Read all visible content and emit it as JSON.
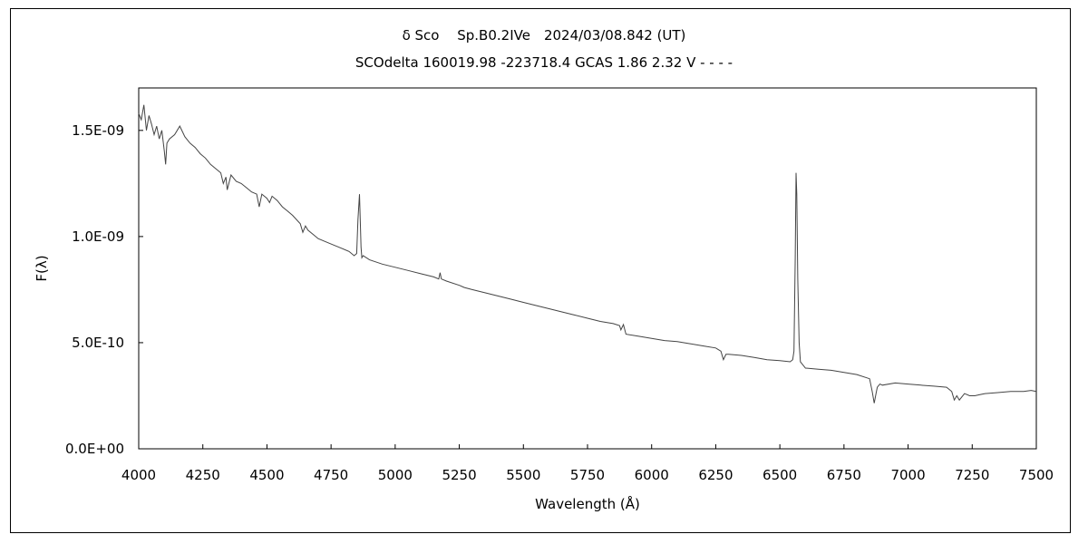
{
  "chart_data": {
    "type": "line",
    "title": "δ Sco　 Sp.B0.2IVe　2024/03/08.842 (UT)",
    "subtitle": "SCOdelta 160019.98 -223718.4 GCAS 1.86 2.32 V - - - -",
    "xlabel": "Wavelength (Å)",
    "ylabel": "F(λ)",
    "xlim": [
      4000,
      7500
    ],
    "ylim": [
      0,
      1.7e-09
    ],
    "xticks": [
      4000,
      4250,
      4500,
      4750,
      5000,
      5250,
      5500,
      5750,
      6000,
      6250,
      6500,
      6750,
      7000,
      7250,
      7500
    ],
    "xtick_labels": [
      "4000",
      "4250",
      "4500",
      "4750",
      "5000",
      "5250",
      "5500",
      "5750",
      "6000",
      "6250",
      "6500",
      "6750",
      "7000",
      "7250",
      "7500"
    ],
    "yticks": [
      0,
      5e-10,
      1e-09,
      1.5e-09
    ],
    "ytick_labels": [
      "0.0E+00",
      "5.0E-10",
      "1.0E-09",
      "1.5E-09"
    ],
    "grid": false,
    "legend": "none",
    "line_color": "#444444",
    "series": [
      {
        "x": [
          4000,
          4010,
          4020,
          4030,
          4040,
          4050,
          4060,
          4070,
          4080,
          4090,
          4100,
          4105,
          4110,
          4120,
          4140,
          4160,
          4180,
          4200,
          4220,
          4240,
          4260,
          4280,
          4300,
          4320,
          4330,
          4340,
          4345,
          4360,
          4380,
          4400,
          4420,
          4440,
          4460,
          4470,
          4480,
          4500,
          4510,
          4520,
          4540,
          4560,
          4580,
          4600,
          4630,
          4640,
          4650,
          4660,
          4680,
          4700,
          4740,
          4780,
          4820,
          4840,
          4850,
          4855,
          4861,
          4867,
          4870,
          4875,
          4900,
          4950,
          5000,
          5050,
          5100,
          5150,
          5170,
          5175,
          5180,
          5200,
          5250,
          5270,
          5300,
          5350,
          5400,
          5450,
          5500,
          5550,
          5600,
          5650,
          5700,
          5750,
          5800,
          5850,
          5875,
          5880,
          5890,
          5900,
          5950,
          6000,
          6050,
          6100,
          6150,
          6200,
          6250,
          6270,
          6280,
          6290,
          6300,
          6350,
          6400,
          6450,
          6500,
          6540,
          6550,
          6555,
          6560,
          6563,
          6566,
          6570,
          6575,
          6580,
          6600,
          6650,
          6700,
          6750,
          6800,
          6850,
          6860,
          6868,
          6875,
          6880,
          6890,
          6900,
          6950,
          7000,
          7050,
          7100,
          7150,
          7170,
          7180,
          7190,
          7200,
          7220,
          7240,
          7260,
          7280,
          7300,
          7350,
          7400,
          7450,
          7480,
          7500
        ],
        "y": [
          1.58e-09,
          1.55e-09,
          1.62e-09,
          1.5e-09,
          1.57e-09,
          1.53e-09,
          1.48e-09,
          1.52e-09,
          1.46e-09,
          1.5e-09,
          1.4e-09,
          1.34e-09,
          1.44e-09,
          1.46e-09,
          1.48e-09,
          1.52e-09,
          1.47e-09,
          1.44e-09,
          1.42e-09,
          1.39e-09,
          1.37e-09,
          1.34e-09,
          1.32e-09,
          1.3e-09,
          1.25e-09,
          1.28e-09,
          1.22e-09,
          1.29e-09,
          1.26e-09,
          1.25e-09,
          1.23e-09,
          1.21e-09,
          1.2e-09,
          1.14e-09,
          1.2e-09,
          1.18e-09,
          1.16e-09,
          1.19e-09,
          1.17e-09,
          1.14e-09,
          1.12e-09,
          1.1e-09,
          1.06e-09,
          1.02e-09,
          1.05e-09,
          1.03e-09,
          1.01e-09,
          9.9e-10,
          9.7e-10,
          9.5e-10,
          9.3e-10,
          9.1e-10,
          9.2e-10,
          1.08e-09,
          1.2e-09,
          9.5e-10,
          9e-10,
          9.1e-10,
          8.9e-10,
          8.7e-10,
          8.55e-10,
          8.4e-10,
          8.25e-10,
          8.1e-10,
          8e-10,
          8.3e-10,
          8e-10,
          7.9e-10,
          7.7e-10,
          7.6e-10,
          7.5e-10,
          7.35e-10,
          7.2e-10,
          7.05e-10,
          6.9e-10,
          6.75e-10,
          6.6e-10,
          6.45e-10,
          6.3e-10,
          6.15e-10,
          6e-10,
          5.9e-10,
          5.8e-10,
          5.6e-10,
          5.85e-10,
          5.4e-10,
          5.3e-10,
          5.2e-10,
          5.1e-10,
          5.05e-10,
          4.95e-10,
          4.85e-10,
          4.75e-10,
          4.6e-10,
          4.2e-10,
          4.45e-10,
          4.45e-10,
          4.4e-10,
          4.3e-10,
          4.2e-10,
          4.15e-10,
          4.1e-10,
          4.2e-10,
          4.6e-10,
          9e-10,
          1.3e-09,
          1.2e-09,
          8e-10,
          5e-10,
          4.1e-10,
          3.8e-10,
          3.75e-10,
          3.7e-10,
          3.6e-10,
          3.5e-10,
          3.3e-10,
          2.7e-10,
          2.15e-10,
          2.6e-10,
          2.9e-10,
          3.05e-10,
          3e-10,
          3.1e-10,
          3.05e-10,
          3e-10,
          2.95e-10,
          2.9e-10,
          2.7e-10,
          2.3e-10,
          2.5e-10,
          2.3e-10,
          2.6e-10,
          2.5e-10,
          2.5e-10,
          2.55e-10,
          2.6e-10,
          2.65e-10,
          2.7e-10,
          2.7e-10,
          2.75e-10,
          2.7e-10
        ]
      }
    ]
  }
}
